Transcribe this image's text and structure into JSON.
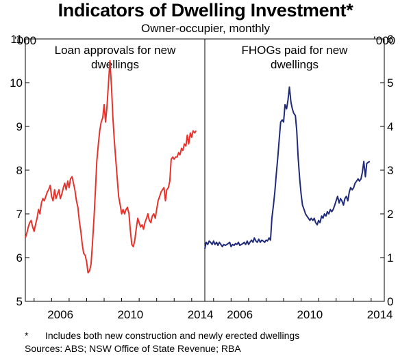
{
  "title": "Indicators of Dwelling Investment*",
  "subtitle": "Owner-occupier, monthly",
  "footnote_mark": "*",
  "footnote_text": "Includes both new construction and newly erected dwellings",
  "sources": "Sources:   ABS; NSW Office of State Revenue; RBA",
  "colors": {
    "loan": "#e8312a",
    "fhog": "#1f2a7a"
  },
  "chart_data": [
    {
      "type": "line",
      "title": "Loan approvals for new dwellings",
      "title_lines": [
        "Loan approvals for new",
        "dwellings"
      ],
      "unit": "’000",
      "axis_side": "left",
      "ylim": [
        5,
        11
      ],
      "yticks": [
        "5",
        "6",
        "7",
        "8",
        "9",
        "10",
        "11"
      ],
      "xlim": [
        2004.5,
        2014.75
      ],
      "xticks": [
        "2006",
        "2010",
        "2014"
      ],
      "grid": false,
      "series": [
        {
          "color": "#e8312a",
          "points": [
            [
              2004.5,
              6.45
            ],
            [
              2004.58,
              6.55
            ],
            [
              2004.67,
              6.7
            ],
            [
              2004.75,
              6.8
            ],
            [
              2004.83,
              6.85
            ],
            [
              2004.92,
              6.7
            ],
            [
              2005.0,
              6.6
            ],
            [
              2005.08,
              6.75
            ],
            [
              2005.17,
              6.9
            ],
            [
              2005.25,
              7.1
            ],
            [
              2005.33,
              7.0
            ],
            [
              2005.42,
              7.25
            ],
            [
              2005.5,
              7.35
            ],
            [
              2005.58,
              7.3
            ],
            [
              2005.67,
              7.4
            ],
            [
              2005.75,
              7.5
            ],
            [
              2005.83,
              7.55
            ],
            [
              2005.92,
              7.65
            ],
            [
              2006.0,
              7.4
            ],
            [
              2006.08,
              7.3
            ],
            [
              2006.17,
              7.55
            ],
            [
              2006.25,
              7.35
            ],
            [
              2006.33,
              7.45
            ],
            [
              2006.42,
              7.55
            ],
            [
              2006.5,
              7.35
            ],
            [
              2006.58,
              7.45
            ],
            [
              2006.67,
              7.6
            ],
            [
              2006.75,
              7.7
            ],
            [
              2006.83,
              7.55
            ],
            [
              2006.92,
              7.75
            ],
            [
              2007.0,
              7.6
            ],
            [
              2007.08,
              7.8
            ],
            [
              2007.17,
              7.85
            ],
            [
              2007.25,
              7.7
            ],
            [
              2007.33,
              7.55
            ],
            [
              2007.42,
              7.3
            ],
            [
              2007.5,
              7.15
            ],
            [
              2007.58,
              6.85
            ],
            [
              2007.67,
              6.6
            ],
            [
              2007.75,
              6.3
            ],
            [
              2007.83,
              6.1
            ],
            [
              2007.92,
              6.05
            ],
            [
              2008.0,
              5.9
            ],
            [
              2008.08,
              5.65
            ],
            [
              2008.17,
              5.7
            ],
            [
              2008.25,
              5.85
            ],
            [
              2008.33,
              6.3
            ],
            [
              2008.42,
              6.9
            ],
            [
              2008.5,
              7.5
            ],
            [
              2008.58,
              8.2
            ],
            [
              2008.67,
              8.6
            ],
            [
              2008.75,
              8.9
            ],
            [
              2008.83,
              9.1
            ],
            [
              2008.92,
              9.2
            ],
            [
              2009.0,
              9.5
            ],
            [
              2009.08,
              9.1
            ],
            [
              2009.17,
              9.5
            ],
            [
              2009.25,
              10.0
            ],
            [
              2009.33,
              10.5
            ],
            [
              2009.42,
              9.9
            ],
            [
              2009.5,
              9.2
            ],
            [
              2009.58,
              8.7
            ],
            [
              2009.67,
              8.2
            ],
            [
              2009.75,
              7.8
            ],
            [
              2009.83,
              7.4
            ],
            [
              2009.92,
              7.2
            ],
            [
              2010.0,
              7.0
            ],
            [
              2010.08,
              7.1
            ],
            [
              2010.17,
              7.0
            ],
            [
              2010.25,
              7.1
            ],
            [
              2010.33,
              7.15
            ],
            [
              2010.42,
              7.0
            ],
            [
              2010.5,
              6.6
            ],
            [
              2010.58,
              6.3
            ],
            [
              2010.67,
              6.25
            ],
            [
              2010.75,
              6.4
            ],
            [
              2010.83,
              6.65
            ],
            [
              2010.92,
              6.9
            ],
            [
              2011.0,
              6.8
            ],
            [
              2011.08,
              6.7
            ],
            [
              2011.17,
              6.75
            ],
            [
              2011.25,
              6.65
            ],
            [
              2011.33,
              6.8
            ],
            [
              2011.42,
              6.9
            ],
            [
              2011.5,
              7.0
            ],
            [
              2011.58,
              6.85
            ],
            [
              2011.67,
              6.8
            ],
            [
              2011.75,
              6.95
            ],
            [
              2011.83,
              7.0
            ],
            [
              2011.92,
              6.9
            ],
            [
              2012.0,
              7.1
            ],
            [
              2012.08,
              7.3
            ],
            [
              2012.17,
              7.4
            ],
            [
              2012.25,
              7.5
            ],
            [
              2012.33,
              7.55
            ],
            [
              2012.42,
              7.6
            ],
            [
              2012.5,
              7.3
            ],
            [
              2012.58,
              7.55
            ],
            [
              2012.67,
              7.6
            ],
            [
              2012.75,
              7.75
            ],
            [
              2012.83,
              8.25
            ],
            [
              2012.92,
              8.3
            ],
            [
              2013.0,
              8.25
            ],
            [
              2013.08,
              8.3
            ],
            [
              2013.17,
              8.3
            ],
            [
              2013.25,
              8.4
            ],
            [
              2013.33,
              8.35
            ],
            [
              2013.42,
              8.5
            ],
            [
              2013.5,
              8.45
            ],
            [
              2013.58,
              8.6
            ],
            [
              2013.67,
              8.55
            ],
            [
              2013.75,
              8.8
            ],
            [
              2013.83,
              8.6
            ],
            [
              2013.92,
              8.85
            ],
            [
              2014.0,
              8.75
            ],
            [
              2014.08,
              8.9
            ],
            [
              2014.17,
              8.85
            ],
            [
              2014.25,
              8.9
            ]
          ]
        }
      ]
    },
    {
      "type": "line",
      "title": "FHOGs paid for new dwellings",
      "title_lines": [
        "FHOGs paid for new",
        "dwellings"
      ],
      "unit": "’000",
      "axis_side": "right",
      "ylim": [
        0,
        6
      ],
      "yticks": [
        "0",
        "1",
        "2",
        "3",
        "4",
        "5",
        "6"
      ],
      "xlim": [
        2004.5,
        2014.75
      ],
      "xticks": [
        "2006",
        "2010",
        "2014"
      ],
      "grid": false,
      "series": [
        {
          "color": "#1f2a7a",
          "points": [
            [
              2004.5,
              1.2
            ],
            [
              2004.58,
              1.35
            ],
            [
              2004.67,
              1.3
            ],
            [
              2004.75,
              1.38
            ],
            [
              2004.83,
              1.35
            ],
            [
              2004.92,
              1.3
            ],
            [
              2005.0,
              1.38
            ],
            [
              2005.08,
              1.3
            ],
            [
              2005.17,
              1.35
            ],
            [
              2005.25,
              1.28
            ],
            [
              2005.33,
              1.35
            ],
            [
              2005.42,
              1.3
            ],
            [
              2005.5,
              1.25
            ],
            [
              2005.58,
              1.3
            ],
            [
              2005.67,
              1.28
            ],
            [
              2005.75,
              1.3
            ],
            [
              2005.83,
              1.32
            ],
            [
              2005.92,
              1.35
            ],
            [
              2006.0,
              1.25
            ],
            [
              2006.08,
              1.3
            ],
            [
              2006.17,
              1.28
            ],
            [
              2006.25,
              1.32
            ],
            [
              2006.33,
              1.3
            ],
            [
              2006.42,
              1.35
            ],
            [
              2006.5,
              1.28
            ],
            [
              2006.58,
              1.3
            ],
            [
              2006.67,
              1.32
            ],
            [
              2006.75,
              1.35
            ],
            [
              2006.83,
              1.3
            ],
            [
              2006.92,
              1.38
            ],
            [
              2007.0,
              1.3
            ],
            [
              2007.08,
              1.35
            ],
            [
              2007.17,
              1.4
            ],
            [
              2007.25,
              1.35
            ],
            [
              2007.33,
              1.45
            ],
            [
              2007.42,
              1.38
            ],
            [
              2007.5,
              1.35
            ],
            [
              2007.58,
              1.42
            ],
            [
              2007.67,
              1.35
            ],
            [
              2007.75,
              1.4
            ],
            [
              2007.83,
              1.38
            ],
            [
              2007.92,
              1.35
            ],
            [
              2008.0,
              1.4
            ],
            [
              2008.08,
              1.38
            ],
            [
              2008.17,
              1.45
            ],
            [
              2008.25,
              1.4
            ],
            [
              2008.33,
              1.9
            ],
            [
              2008.42,
              2.2
            ],
            [
              2008.5,
              2.5
            ],
            [
              2008.58,
              2.9
            ],
            [
              2008.67,
              3.3
            ],
            [
              2008.75,
              3.7
            ],
            [
              2008.83,
              4.1
            ],
            [
              2008.92,
              4.15
            ],
            [
              2009.0,
              4.1
            ],
            [
              2009.08,
              4.5
            ],
            [
              2009.17,
              4.4
            ],
            [
              2009.25,
              4.6
            ],
            [
              2009.33,
              4.9
            ],
            [
              2009.42,
              4.55
            ],
            [
              2009.5,
              4.4
            ],
            [
              2009.58,
              4.3
            ],
            [
              2009.67,
              4.25
            ],
            [
              2009.75,
              3.9
            ],
            [
              2009.83,
              3.3
            ],
            [
              2009.92,
              2.8
            ],
            [
              2010.0,
              2.45
            ],
            [
              2010.08,
              2.2
            ],
            [
              2010.17,
              2.1
            ],
            [
              2010.25,
              2.0
            ],
            [
              2010.33,
              1.95
            ],
            [
              2010.42,
              1.9
            ],
            [
              2010.5,
              1.85
            ],
            [
              2010.58,
              1.9
            ],
            [
              2010.67,
              1.85
            ],
            [
              2010.75,
              1.9
            ],
            [
              2010.83,
              1.8
            ],
            [
              2010.92,
              1.75
            ],
            [
              2011.0,
              1.85
            ],
            [
              2011.08,
              1.8
            ],
            [
              2011.17,
              1.95
            ],
            [
              2011.25,
              1.9
            ],
            [
              2011.33,
              2.0
            ],
            [
              2011.42,
              1.95
            ],
            [
              2011.5,
              2.05
            ],
            [
              2011.58,
              2.0
            ],
            [
              2011.67,
              2.1
            ],
            [
              2011.75,
              2.05
            ],
            [
              2011.83,
              2.1
            ],
            [
              2011.92,
              2.2
            ],
            [
              2012.0,
              2.3
            ],
            [
              2012.08,
              2.4
            ],
            [
              2012.17,
              2.25
            ],
            [
              2012.25,
              2.35
            ],
            [
              2012.33,
              2.3
            ],
            [
              2012.42,
              2.2
            ],
            [
              2012.5,
              2.35
            ],
            [
              2012.58,
              2.4
            ],
            [
              2012.67,
              2.3
            ],
            [
              2012.75,
              2.5
            ],
            [
              2012.83,
              2.6
            ],
            [
              2012.92,
              2.55
            ],
            [
              2013.0,
              2.6
            ],
            [
              2013.08,
              2.7
            ],
            [
              2013.17,
              2.75
            ],
            [
              2013.25,
              2.8
            ],
            [
              2013.33,
              2.75
            ],
            [
              2013.42,
              2.8
            ],
            [
              2013.5,
              2.95
            ],
            [
              2013.58,
              3.2
            ],
            [
              2013.67,
              2.85
            ],
            [
              2013.75,
              3.15
            ],
            [
              2013.83,
              3.18
            ],
            [
              2013.92,
              3.2
            ]
          ]
        }
      ]
    }
  ]
}
